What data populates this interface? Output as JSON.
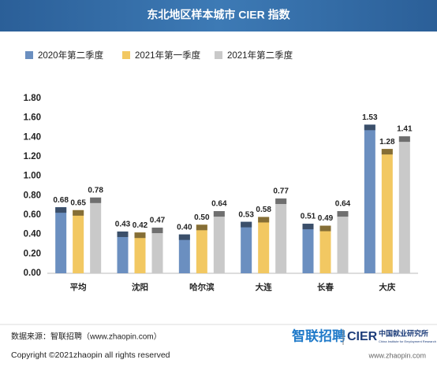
{
  "chart_data": {
    "type": "bar",
    "title": "东北地区样本城市 CIER 指数",
    "categories": [
      "平均",
      "沈阳",
      "哈尔滨",
      "大连",
      "长春",
      "大庆"
    ],
    "series": [
      {
        "name": "2020年第二季度",
        "color": "#6b8fc0",
        "values": [
          0.68,
          0.43,
          0.4,
          0.53,
          0.51,
          1.53
        ],
        "value_labels": [
          "0.68",
          "0.43",
          "0.40",
          "0.53",
          "0.51",
          "1.53"
        ]
      },
      {
        "name": "2021年第一季度",
        "color": "#f2c862",
        "values": [
          0.65,
          0.42,
          0.5,
          0.58,
          0.49,
          1.28
        ],
        "value_labels": [
          "0.65",
          "0.42",
          "0.50",
          "0.58",
          "0.49",
          "1.28"
        ]
      },
      {
        "name": "2021年第二季度",
        "color": "#c9c9c9",
        "values": [
          0.78,
          0.47,
          0.64,
          0.77,
          0.64,
          1.41
        ],
        "value_labels": [
          "0.78",
          "0.47",
          "0.64",
          "0.77",
          "0.64",
          "1.41"
        ]
      }
    ],
    "ylim": [
      0,
      1.8
    ],
    "yticks": [
      {
        "value": 0,
        "label": "0.00"
      },
      {
        "value": 0.2,
        "label": "0.20"
      },
      {
        "value": 0.4,
        "label": "0.40"
      },
      {
        "value": 0.6,
        "label": "0.60"
      },
      {
        "value": 0.8,
        "label": "0.80"
      },
      {
        "value": 1,
        "label": "1.00"
      },
      {
        "value": 1.2,
        "label": "1.20"
      },
      {
        "value": 1.4,
        "label": "1.40"
      },
      {
        "value": 1.6,
        "label": "1.60"
      },
      {
        "value": 1.8,
        "label": "1.80"
      }
    ],
    "grid": false
  },
  "footer": {
    "source": "数据来源：智联招聘（www.zhaopin.com）",
    "copyright": "Copyright ©2021zhaopin all rights reserved",
    "logo_zhaopin": "智联招聘",
    "logo_cier": "CIER",
    "logo_cier_cn": "中国就业研究所",
    "logo_cier_en": "China Institute for Employment Research",
    "url": "www.zhaopin.com"
  }
}
